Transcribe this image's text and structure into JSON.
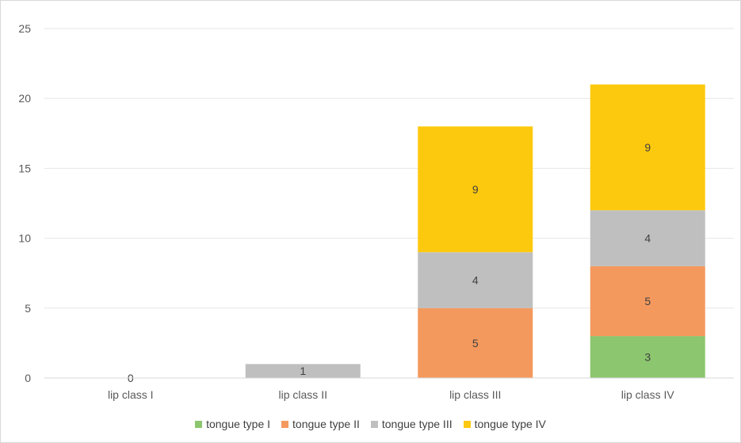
{
  "chart_data": {
    "type": "bar",
    "stacked": true,
    "categories": [
      "lip class I",
      "lip class II",
      "lip class III",
      "lip class IV"
    ],
    "series": [
      {
        "name": "tongue type I",
        "color": "#8cc66e",
        "values": [
          0,
          0,
          0,
          3
        ]
      },
      {
        "name": "tongue type II",
        "color": "#f4995d",
        "values": [
          0,
          0,
          5,
          5
        ]
      },
      {
        "name": "tongue type III",
        "color": "#bfbfbf",
        "values": [
          0,
          1,
          4,
          4
        ]
      },
      {
        "name": "tongue type IV",
        "color": "#fdc90e",
        "values": [
          0,
          0,
          9,
          9
        ]
      }
    ],
    "zero_label": "0",
    "ylim": [
      0,
      25
    ],
    "yticks": [
      0,
      5,
      10,
      15,
      20,
      25
    ],
    "grid": true,
    "legend_position": "bottom"
  }
}
